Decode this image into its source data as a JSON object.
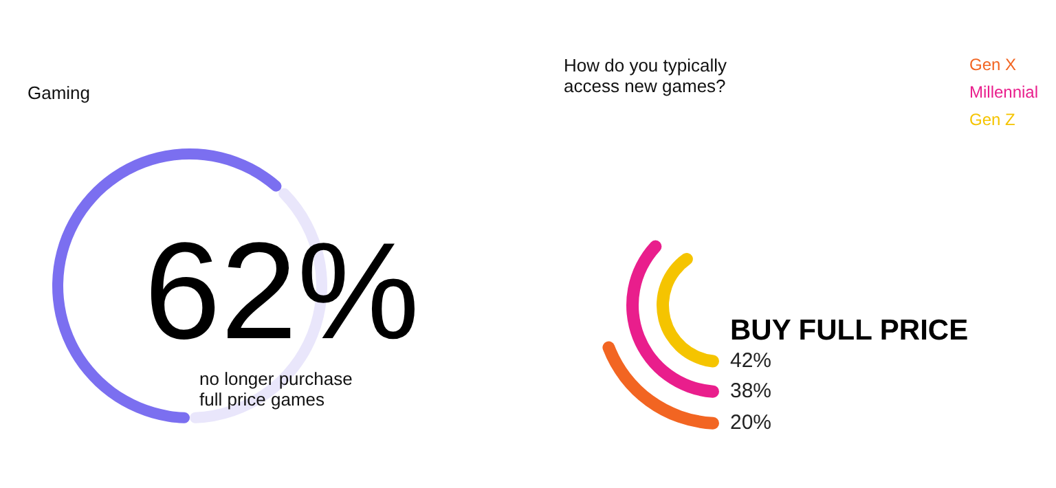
{
  "chart_data": [
    {
      "type": "donut",
      "title": "Gaming",
      "categories": [
        null,
        null
      ],
      "values": [
        62,
        38
      ],
      "colors": [
        "#7b6ff0",
        "#e9e6fb"
      ],
      "annotations": [
        "62%",
        "no longer purchase\nfull price games"
      ]
    },
    {
      "type": "other",
      "title": "How do you typically\naccess new games?",
      "categories": [
        "BUY FULL PRICE"
      ],
      "series": [
        {
          "name": "Gen X",
          "color": "#f26522",
          "values": [
            20
          ],
          "value_labels": [
            "20%"
          ]
        },
        {
          "name": "Millennial",
          "color": "#e91e8c",
          "values": [
            38
          ],
          "value_labels": [
            "38%"
          ]
        },
        {
          "name": "Gen Z",
          "color": "#f5c400",
          "values": [
            42
          ],
          "value_labels": [
            "42%"
          ]
        }
      ]
    }
  ]
}
